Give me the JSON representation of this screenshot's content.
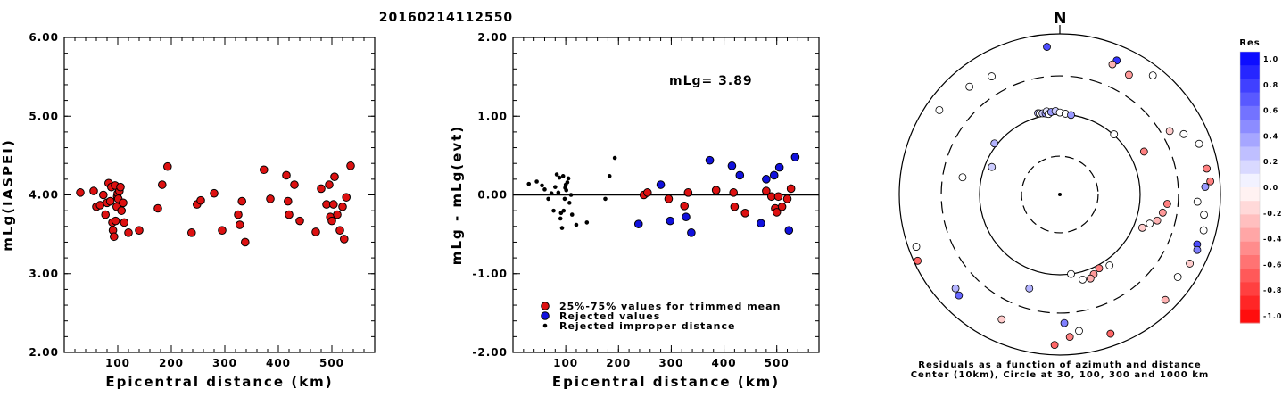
{
  "title": "20160214112550",
  "chart_data": [
    {
      "type": "scatter",
      "xlabel": "Epicentral distance (km)",
      "ylabel": "mLg(IASPEI)",
      "xlim": [
        0,
        580
      ],
      "ylim": [
        2.0,
        6.0
      ],
      "xticks": [
        "100",
        "200",
        "300",
        "400",
        "500"
      ],
      "yticks": [
        "2.00",
        "3.00",
        "4.00",
        "5.00",
        "6.00"
      ],
      "series": [
        {
          "color": "#dd1111",
          "points": [
            [
              30,
              4.03
            ],
            [
              55,
              4.05
            ],
            [
              60,
              3.85
            ],
            [
              67,
              3.87
            ],
            [
              73,
              4.0
            ],
            [
              77,
              3.75
            ],
            [
              80,
              3.9
            ],
            [
              83,
              4.15
            ],
            [
              86,
              3.92
            ],
            [
              88,
              4.1
            ],
            [
              90,
              3.65
            ],
            [
              91,
              3.55
            ],
            [
              93,
              3.47
            ],
            [
              95,
              4.12
            ],
            [
              96,
              3.67
            ],
            [
              98,
              3.85
            ],
            [
              99,
              3.98
            ],
            [
              100,
              4.02
            ],
            [
              101,
              3.95
            ],
            [
              103,
              4.05
            ],
            [
              105,
              4.1
            ],
            [
              107,
              3.8
            ],
            [
              110,
              3.9
            ],
            [
              112,
              3.65
            ],
            [
              120,
              3.52
            ],
            [
              140,
              3.55
            ],
            [
              175,
              3.83
            ],
            [
              183,
              4.13
            ],
            [
              193,
              4.36
            ],
            [
              238,
              3.52
            ],
            [
              248,
              3.88
            ],
            [
              255,
              3.93
            ],
            [
              280,
              4.02
            ],
            [
              295,
              3.55
            ],
            [
              325,
              3.75
            ],
            [
              328,
              3.62
            ],
            [
              332,
              3.92
            ],
            [
              338,
              3.4
            ],
            [
              373,
              4.32
            ],
            [
              385,
              3.95
            ],
            [
              415,
              4.25
            ],
            [
              418,
              3.92
            ],
            [
              420,
              3.75
            ],
            [
              430,
              4.13
            ],
            [
              440,
              3.67
            ],
            [
              470,
              3.53
            ],
            [
              480,
              4.08
            ],
            [
              490,
              3.88
            ],
            [
              495,
              4.13
            ],
            [
              497,
              3.72
            ],
            [
              500,
              3.67
            ],
            [
              503,
              3.88
            ],
            [
              505,
              4.23
            ],
            [
              510,
              3.75
            ],
            [
              515,
              3.55
            ],
            [
              520,
              3.85
            ],
            [
              523,
              3.44
            ],
            [
              527,
              3.97
            ],
            [
              535,
              4.37
            ]
          ]
        }
      ]
    },
    {
      "type": "scatter",
      "xlabel": "Epicentral distance (km)",
      "ylabel": "mLg - mLg(evt)",
      "xlim": [
        0,
        580
      ],
      "ylim": [
        -2.0,
        2.0
      ],
      "xticks": [
        "100",
        "200",
        "300",
        "400",
        "500"
      ],
      "yticks": [
        "-2.00",
        "-1.00",
        "0.00",
        "1.00",
        "2.00"
      ],
      "annotation": "mLg= 3.89",
      "legend": [
        {
          "label": "25%-75% values for trimmed mean",
          "color": "#dd1111"
        },
        {
          "label": "Rejected values",
          "color": "#1111dd"
        },
        {
          "label": "Rejected improper distance",
          "color": "#000000"
        }
      ],
      "series": [
        {
          "name": "25%-75% values for trimmed mean",
          "color": "#dd1111",
          "points": [
            [
              248,
              0.0
            ],
            [
              255,
              0.03
            ],
            [
              295,
              -0.05
            ],
            [
              325,
              -0.14
            ],
            [
              332,
              0.03
            ],
            [
              385,
              0.06
            ],
            [
              418,
              0.03
            ],
            [
              420,
              -0.15
            ],
            [
              440,
              -0.23
            ],
            [
              480,
              0.05
            ],
            [
              490,
              -0.02
            ],
            [
              497,
              -0.17
            ],
            [
              500,
              -0.22
            ],
            [
              503,
              -0.02
            ],
            [
              510,
              -0.15
            ],
            [
              520,
              -0.05
            ],
            [
              527,
              0.08
            ]
          ]
        },
        {
          "name": "Rejected values",
          "color": "#1111dd",
          "points": [
            [
              238,
              -0.37
            ],
            [
              280,
              0.13
            ],
            [
              298,
              -0.33
            ],
            [
              328,
              -0.28
            ],
            [
              338,
              -0.48
            ],
            [
              373,
              0.44
            ],
            [
              415,
              0.37
            ],
            [
              430,
              0.25
            ],
            [
              470,
              -0.36
            ],
            [
              480,
              0.2
            ],
            [
              495,
              0.25
            ],
            [
              505,
              0.35
            ],
            [
              523,
              -0.45
            ],
            [
              535,
              0.48
            ]
          ]
        },
        {
          "name": "Rejected improper distance",
          "color": "#000000",
          "points": [
            [
              30,
              0.14
            ],
            [
              45,
              0.17
            ],
            [
              55,
              0.12
            ],
            [
              60,
              0.07
            ],
            [
              67,
              -0.05
            ],
            [
              73,
              0.02
            ],
            [
              77,
              -0.2
            ],
            [
              80,
              0.1
            ],
            [
              83,
              0.26
            ],
            [
              86,
              0.03
            ],
            [
              88,
              0.22
            ],
            [
              90,
              -0.3
            ],
            [
              91,
              -0.23
            ],
            [
              93,
              -0.42
            ],
            [
              95,
              0.24
            ],
            [
              96,
              -0.2
            ],
            [
              98,
              -0.05
            ],
            [
              99,
              0.09
            ],
            [
              100,
              0.13
            ],
            [
              101,
              0.06
            ],
            [
              103,
              0.16
            ],
            [
              105,
              0.21
            ],
            [
              107,
              -0.1
            ],
            [
              110,
              0.0
            ],
            [
              112,
              -0.25
            ],
            [
              120,
              -0.38
            ],
            [
              140,
              -0.35
            ],
            [
              175,
              -0.05
            ],
            [
              183,
              0.24
            ],
            [
              193,
              0.47
            ]
          ]
        }
      ]
    },
    {
      "type": "polar",
      "north_label": "N",
      "caption_line1": "Residuals as a function of azimuth and distance",
      "caption_line2": "Center (10km), Circle at 30, 100, 300 and 1000 km",
      "colorbar_title": "Res",
      "colorbar_ticks": [
        "1.0",
        "0.8",
        "0.6",
        "0.4",
        "0.2",
        "0.0",
        "-0.2",
        "-0.4",
        "-0.6",
        "-0.8",
        "-1.0"
      ],
      "points": [
        {
          "az": 355,
          "dist": 700,
          "res": 0.7
        },
        {
          "az": 23,
          "dist": 650,
          "res": 0.8
        },
        {
          "az": 22,
          "dist": 560,
          "res": -0.3
        },
        {
          "az": 30,
          "dist": 525,
          "res": -0.4
        },
        {
          "az": 38,
          "dist": 760,
          "res": 0.0
        },
        {
          "az": 320,
          "dist": 565,
          "res": 0.0
        },
        {
          "az": 305,
          "dist": 680,
          "res": 0.0
        },
        {
          "az": 330,
          "dist": 500,
          "res": 0.0
        },
        {
          "az": 345,
          "dist": 112,
          "res": 0.3
        },
        {
          "az": 346,
          "dist": 110,
          "res": 0.0
        },
        {
          "az": 348,
          "dist": 108,
          "res": 0.2
        },
        {
          "az": 350,
          "dist": 106,
          "res": 0.4
        },
        {
          "az": 351,
          "dist": 112,
          "res": 0.1
        },
        {
          "az": 352,
          "dist": 103,
          "res": 0.0
        },
        {
          "az": 354,
          "dist": 108,
          "res": 0.4
        },
        {
          "az": 357,
          "dist": 110,
          "res": 0.2
        },
        {
          "az": 0,
          "dist": 105,
          "res": 0.0
        },
        {
          "az": 4,
          "dist": 102,
          "res": 0.0
        },
        {
          "az": 8,
          "dist": 100,
          "res": 0.4
        },
        {
          "az": 42,
          "dist": 102,
          "res": 0.0
        },
        {
          "az": 308,
          "dist": 108,
          "res": 0.3
        },
        {
          "az": 292,
          "dist": 82,
          "res": 0.2
        },
        {
          "az": 280,
          "dist": 170,
          "res": 0.0
        },
        {
          "az": 63,
          "dist": 150,
          "res": -0.5
        },
        {
          "az": 60,
          "dist": 380,
          "res": -0.2
        },
        {
          "az": 64,
          "dist": 520,
          "res": 0.0
        },
        {
          "az": 70,
          "dist": 700,
          "res": 0.0
        },
        {
          "az": 80,
          "dist": 720,
          "res": -0.5
        },
        {
          "az": 85,
          "dist": 760,
          "res": -0.5
        },
        {
          "az": 87,
          "dist": 650,
          "res": 0.4
        },
        {
          "az": 93,
          "dist": 520,
          "res": 0.0
        },
        {
          "az": 95,
          "dist": 220,
          "res": -0.5
        },
        {
          "az": 100,
          "dist": 200,
          "res": -0.4
        },
        {
          "az": 105,
          "dist": 180,
          "res": -0.3
        },
        {
          "az": 108,
          "dist": 150,
          "res": 0.0
        },
        {
          "az": 112,
          "dist": 128,
          "res": -0.2
        },
        {
          "az": 98,
          "dist": 650,
          "res": 0.0
        },
        {
          "az": 104,
          "dist": 700,
          "res": 0.0
        },
        {
          "az": 110,
          "dist": 660,
          "res": 0.7
        },
        {
          "az": 112,
          "dist": 700,
          "res": 0.5
        },
        {
          "az": 118,
          "dist": 680,
          "res": -0.2
        },
        {
          "az": 125,
          "dist": 620,
          "res": 0.0
        },
        {
          "az": 135,
          "dist": 720,
          "res": -0.3
        },
        {
          "az": 145,
          "dist": 120,
          "res": 0.0
        },
        {
          "az": 152,
          "dist": 110,
          "res": -0.5
        },
        {
          "az": 157,
          "dist": 120,
          "res": -0.4
        },
        {
          "az": 160,
          "dist": 130,
          "res": -0.3
        },
        {
          "az": 165,
          "dist": 125,
          "res": 0.0
        },
        {
          "az": 172,
          "dist": 100,
          "res": 0.0
        },
        {
          "az": 178,
          "dist": 400,
          "res": 0.5
        },
        {
          "az": 172,
          "dist": 520,
          "res": 0.0
        },
        {
          "az": 176,
          "dist": 600,
          "res": -0.5
        },
        {
          "az": 182,
          "dist": 750,
          "res": -0.6
        },
        {
          "az": 160,
          "dist": 700,
          "res": -0.6
        },
        {
          "az": 198,
          "dist": 170,
          "res": 0.3
        },
        {
          "az": 205,
          "dist": 520,
          "res": -0.2
        },
        {
          "az": 225,
          "dist": 600,
          "res": 0.6
        },
        {
          "az": 228,
          "dist": 560,
          "res": 0.3
        },
        {
          "az": 245,
          "dist": 900,
          "res": -0.6
        },
        {
          "az": 250,
          "dist": 800,
          "res": 0.0
        }
      ]
    }
  ]
}
